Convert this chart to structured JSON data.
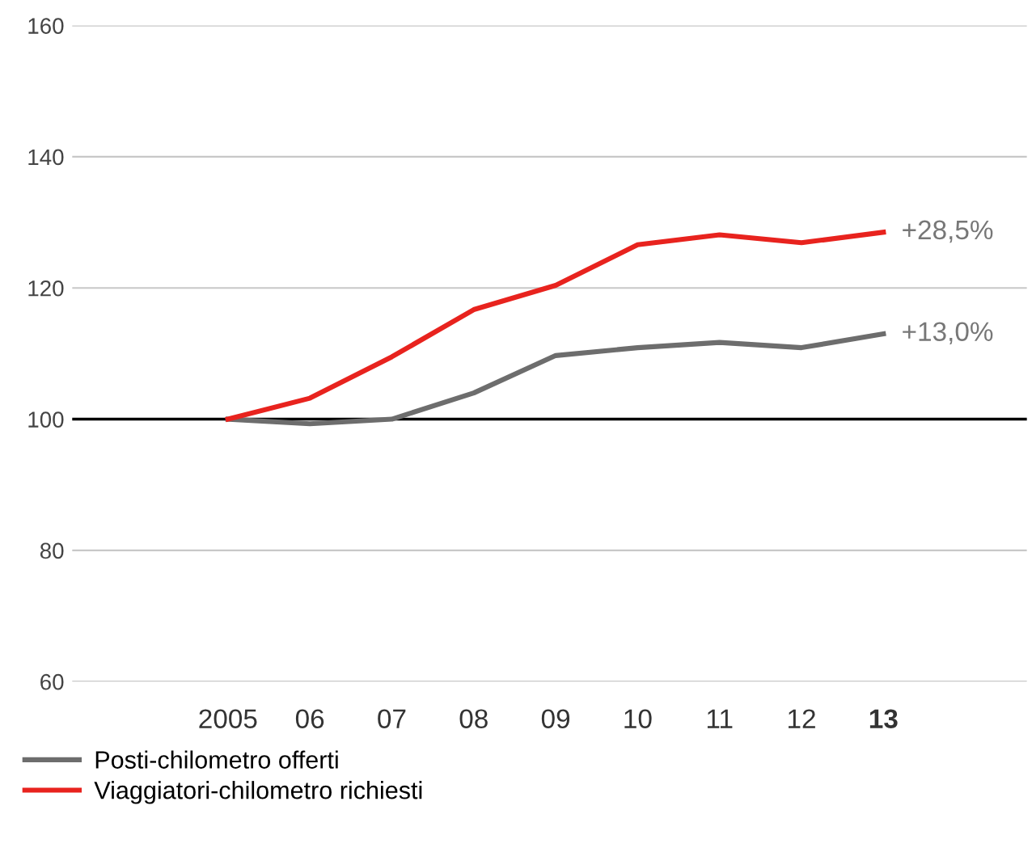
{
  "chart_data": {
    "type": "line",
    "categories": [
      "2005",
      "06",
      "07",
      "08",
      "09",
      "10",
      "11",
      "12",
      "13"
    ],
    "series": [
      {
        "name": "Posti-chilometro offerti",
        "color": "#6d6d6d",
        "values": [
          100,
          99.3,
          100,
          104,
          109.7,
          110.9,
          111.7,
          110.9,
          113
        ]
      },
      {
        "name": "Viaggiatori-chilometro richiesti",
        "color": "#e8231e",
        "values": [
          100,
          103.2,
          109.5,
          116.7,
          120.4,
          126.6,
          128.1,
          126.9,
          128.5
        ]
      }
    ],
    "ylim": [
      60,
      160
    ],
    "yticks": [
      60,
      80,
      100,
      120,
      140,
      160
    ],
    "grid": "y",
    "legend": "bottom",
    "marker": "none",
    "line_style": "solid",
    "ref_lines": [
      {
        "axis": "y",
        "value": 100,
        "color": "#000000"
      }
    ],
    "annotations": [
      {
        "text": "+28,5%",
        "x": "13",
        "y": 128.5
      },
      {
        "text": "+13,0%",
        "x": "13",
        "y": 113
      }
    ]
  }
}
